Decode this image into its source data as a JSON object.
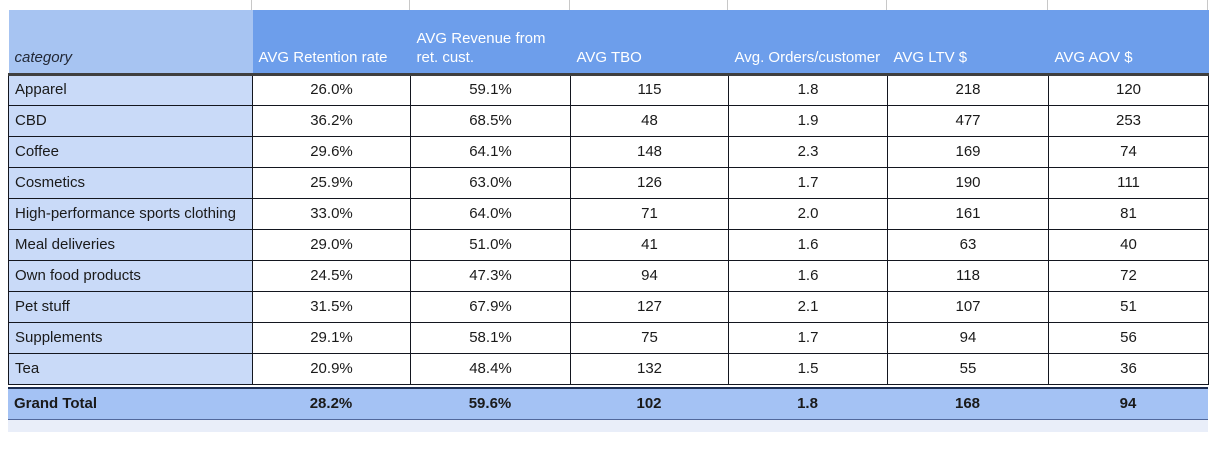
{
  "table": {
    "columns": [
      "category",
      "AVG Retention rate",
      "AVG Revenue from ret. cust.",
      "AVG TBO",
      "Avg. Orders/customer",
      "AVG LTV $",
      "AVG AOV $"
    ],
    "rows": [
      {
        "category": "Apparel",
        "values": [
          "26.0%",
          "59.1%",
          "115",
          "1.8",
          "218",
          "120"
        ]
      },
      {
        "category": "CBD",
        "values": [
          "36.2%",
          "68.5%",
          "48",
          "1.9",
          "477",
          "253"
        ]
      },
      {
        "category": "Coffee",
        "values": [
          "29.6%",
          "64.1%",
          "148",
          "2.3",
          "169",
          "74"
        ]
      },
      {
        "category": "Cosmetics",
        "values": [
          "25.9%",
          "63.0%",
          "126",
          "1.7",
          "190",
          "111"
        ]
      },
      {
        "category": "High-performance sports clothing",
        "values": [
          "33.0%",
          "64.0%",
          "71",
          "2.0",
          "161",
          "81"
        ]
      },
      {
        "category": "Meal deliveries",
        "values": [
          "29.0%",
          "51.0%",
          "41",
          "1.6",
          "63",
          "40"
        ]
      },
      {
        "category": "Own food products",
        "values": [
          "24.5%",
          "47.3%",
          "94",
          "1.6",
          "118",
          "72"
        ]
      },
      {
        "category": "Pet stuff",
        "values": [
          "31.5%",
          "67.9%",
          "127",
          "2.1",
          "107",
          "51"
        ]
      },
      {
        "category": "Supplements",
        "values": [
          "29.1%",
          "58.1%",
          "75",
          "1.7",
          "94",
          "56"
        ]
      },
      {
        "category": "Tea",
        "values": [
          "20.9%",
          "48.4%",
          "132",
          "1.5",
          "55",
          "36"
        ]
      }
    ],
    "grand_total": {
      "label": "Grand Total",
      "values": [
        "28.2%",
        "59.6%",
        "102",
        "1.8",
        "168",
        "94"
      ]
    }
  },
  "colors": {
    "header_blue": "#6d9eeb",
    "header_category_blue": "#a7c4f2",
    "category_cell_blue": "#c9daf8",
    "grand_total_blue": "#a4c2f4",
    "separator_navy": "#1d2f54",
    "grid_line": "#13161f"
  }
}
